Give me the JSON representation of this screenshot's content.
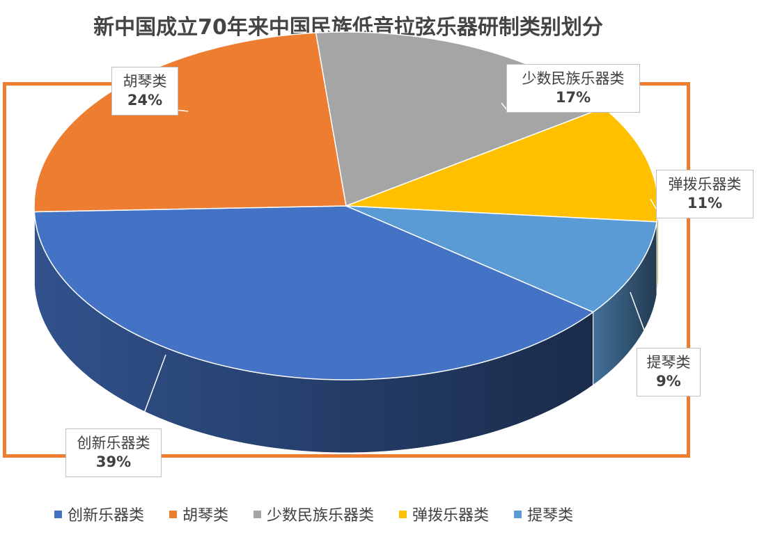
{
  "chart_data": {
    "type": "pie",
    "title": "新中国成立70年来中国民族低音拉弦乐器研制类别划分",
    "slices": [
      {
        "label": "创新乐器类",
        "value": 39,
        "value_label": "39%",
        "color": "#4472C4"
      },
      {
        "label": "胡琴类",
        "value": 24,
        "value_label": "24%",
        "color": "#ED7D31"
      },
      {
        "label": "少数民族乐器类",
        "value": 17,
        "value_label": "17%",
        "color": "#A5A5A5"
      },
      {
        "label": "弹拨乐器类",
        "value": 11,
        "value_label": "11%",
        "color": "#FFC000"
      },
      {
        "label": "提琴类",
        "value": 9,
        "value_label": "9%",
        "color": "#5B9BD5"
      }
    ],
    "legend_position": "bottom",
    "style": "3d-exploded-none"
  },
  "frame_color": "#ED7D31"
}
